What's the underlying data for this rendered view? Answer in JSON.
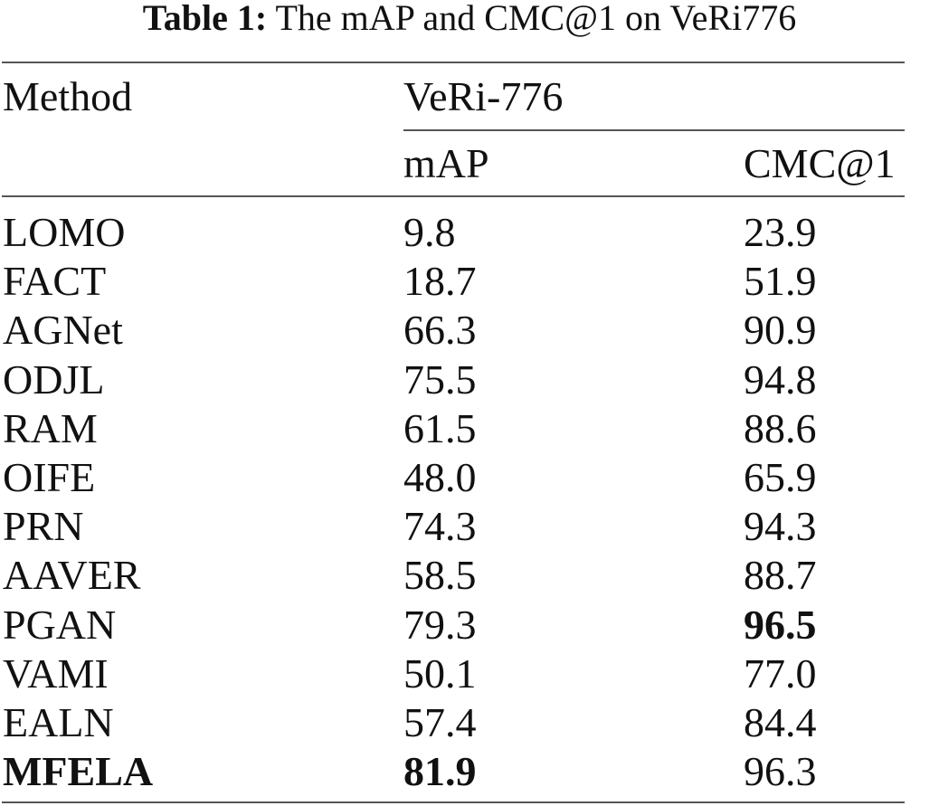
{
  "caption": {
    "label": "Table 1:",
    "text": "The mAP and CMC@1 on VeRi776"
  },
  "table": {
    "header": {
      "method": "Method",
      "dataset": "VeRi-776",
      "map": "mAP",
      "cmc1": "CMC@1"
    },
    "rows": [
      {
        "method": "LOMO",
        "map": "9.8",
        "cmc1": "23.9",
        "bold_method": false,
        "bold_map": false,
        "bold_cmc1": false
      },
      {
        "method": "FACT",
        "map": "18.7",
        "cmc1": "51.9",
        "bold_method": false,
        "bold_map": false,
        "bold_cmc1": false
      },
      {
        "method": "AGNet",
        "map": "66.3",
        "cmc1": "90.9",
        "bold_method": false,
        "bold_map": false,
        "bold_cmc1": false
      },
      {
        "method": "ODJL",
        "map": "75.5",
        "cmc1": "94.8",
        "bold_method": false,
        "bold_map": false,
        "bold_cmc1": false
      },
      {
        "method": "RAM",
        "map": "61.5",
        "cmc1": "88.6",
        "bold_method": false,
        "bold_map": false,
        "bold_cmc1": false
      },
      {
        "method": "OIFE",
        "map": "48.0",
        "cmc1": "65.9",
        "bold_method": false,
        "bold_map": false,
        "bold_cmc1": false
      },
      {
        "method": "PRN",
        "map": "74.3",
        "cmc1": "94.3",
        "bold_method": false,
        "bold_map": false,
        "bold_cmc1": false
      },
      {
        "method": "AAVER",
        "map": "58.5",
        "cmc1": "88.7",
        "bold_method": false,
        "bold_map": false,
        "bold_cmc1": false
      },
      {
        "method": "PGAN",
        "map": "79.3",
        "cmc1": "96.5",
        "bold_method": false,
        "bold_map": false,
        "bold_cmc1": true
      },
      {
        "method": "VAMI",
        "map": "50.1",
        "cmc1": "77.0",
        "bold_method": false,
        "bold_map": false,
        "bold_cmc1": false
      },
      {
        "method": "EALN",
        "map": "57.4",
        "cmc1": "84.4",
        "bold_method": false,
        "bold_map": false,
        "bold_cmc1": false
      },
      {
        "method": "MFELA",
        "map": "81.9",
        "cmc1": "96.3",
        "bold_method": true,
        "bold_map": true,
        "bold_cmc1": false
      }
    ]
  }
}
